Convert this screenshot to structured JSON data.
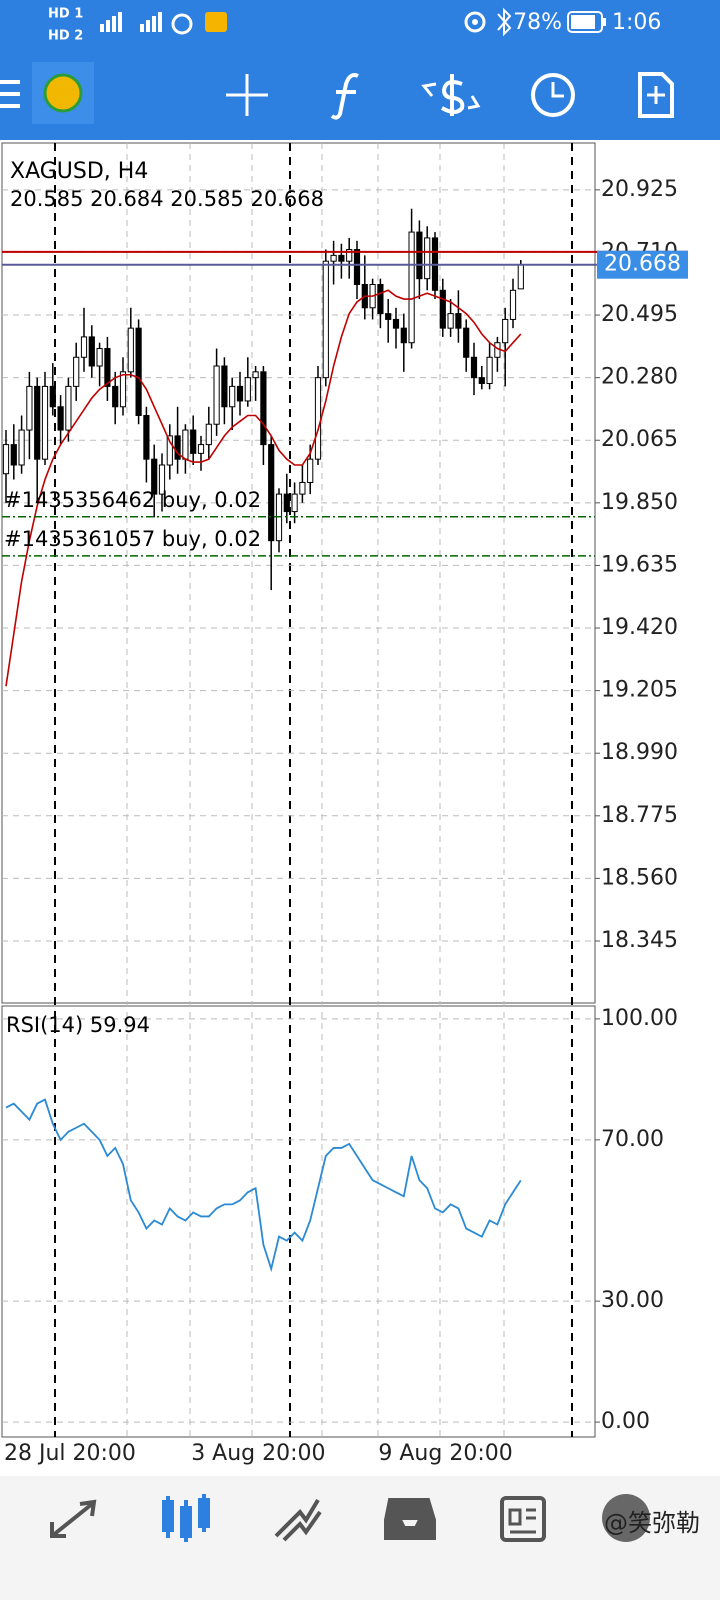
{
  "status_bar": {
    "sim1": "HD 1",
    "sim2": "HD 2",
    "battery": "78%",
    "time": "1:06"
  },
  "watermark": "@笑弥勒",
  "chart_data": [
    {
      "type": "candlestick",
      "title": "XAGUSD, H4",
      "ohlc_label": "20.585 20.684 20.585 20.668",
      "categories": [
        "28 Jul 20:00",
        null,
        null,
        null,
        null,
        null,
        null,
        null,
        null,
        null,
        null,
        null,
        null,
        null,
        null,
        null,
        null,
        null,
        null,
        null,
        null,
        null,
        null,
        null,
        "3 Aug 20:00",
        null,
        null,
        null,
        null,
        null,
        null,
        null,
        null,
        null,
        null,
        null,
        null,
        null,
        null,
        null,
        null,
        null,
        null,
        null,
        null,
        null,
        null,
        null,
        "9 Aug 20:00",
        null,
        null,
        null,
        null,
        null,
        null,
        null,
        null,
        null,
        null,
        null,
        null,
        null,
        null,
        null,
        null,
        null,
        null
      ],
      "open": [
        19.95,
        20.05,
        19.98,
        20.1,
        20.25,
        20.0,
        20.25,
        20.18,
        20.1,
        20.25,
        20.35,
        20.42,
        20.32,
        20.38,
        20.25,
        20.18,
        20.3,
        20.45,
        20.15,
        20.0,
        19.88,
        19.98,
        20.08,
        20.0,
        20.1,
        20.02,
        20.05,
        20.12,
        20.32,
        20.18,
        20.25,
        20.2,
        20.28,
        20.3,
        20.05,
        19.72,
        19.88,
        19.82,
        19.88,
        19.92,
        20.0,
        20.28,
        20.68,
        20.7,
        20.68,
        20.72,
        20.6,
        20.52,
        20.6,
        20.5,
        20.48,
        20.45,
        20.4,
        20.78,
        20.62,
        20.76,
        20.58,
        20.45,
        20.5,
        20.45,
        20.35,
        20.28,
        20.26,
        20.35,
        20.4,
        20.48,
        20.585
      ],
      "high": [
        20.1,
        20.12,
        20.15,
        20.3,
        20.28,
        20.3,
        20.33,
        20.22,
        20.28,
        20.4,
        20.52,
        20.46,
        20.4,
        20.42,
        20.3,
        20.35,
        20.52,
        20.48,
        20.18,
        20.05,
        20.02,
        20.12,
        20.18,
        20.12,
        20.15,
        20.08,
        20.18,
        20.38,
        20.35,
        20.28,
        20.3,
        20.35,
        20.32,
        20.32,
        20.08,
        19.9,
        19.95,
        19.92,
        19.98,
        20.05,
        20.32,
        20.72,
        20.75,
        20.74,
        20.76,
        20.75,
        20.7,
        20.62,
        20.62,
        20.55,
        20.52,
        20.5,
        20.86,
        20.82,
        20.8,
        20.78,
        20.62,
        20.55,
        20.58,
        20.48,
        20.4,
        20.32,
        20.4,
        20.42,
        20.52,
        20.62,
        20.684
      ],
      "low": [
        19.85,
        19.93,
        19.95,
        20.0,
        19.85,
        19.98,
        20.15,
        20.05,
        20.06,
        20.2,
        20.3,
        20.28,
        20.25,
        20.2,
        20.12,
        20.15,
        20.28,
        20.12,
        19.92,
        19.8,
        19.82,
        19.93,
        19.95,
        19.95,
        19.98,
        19.96,
        20.0,
        20.08,
        20.12,
        20.1,
        20.15,
        20.18,
        20.2,
        19.98,
        19.55,
        19.68,
        19.78,
        19.78,
        19.85,
        19.88,
        19.98,
        20.25,
        20.6,
        20.62,
        20.62,
        20.55,
        20.48,
        20.48,
        20.45,
        20.4,
        20.38,
        20.3,
        20.38,
        20.55,
        20.58,
        20.55,
        20.42,
        20.42,
        20.4,
        20.3,
        20.22,
        20.24,
        20.24,
        20.3,
        20.25,
        20.45,
        20.585
      ],
      "close": [
        20.05,
        19.98,
        20.1,
        20.25,
        20.0,
        20.25,
        20.18,
        20.1,
        20.25,
        20.35,
        20.42,
        20.32,
        20.38,
        20.25,
        20.18,
        20.3,
        20.45,
        20.15,
        20.0,
        19.88,
        19.98,
        20.08,
        20.0,
        20.1,
        20.02,
        20.05,
        20.12,
        20.32,
        20.18,
        20.25,
        20.2,
        20.28,
        20.3,
        20.05,
        19.72,
        19.88,
        19.82,
        19.88,
        19.92,
        20.0,
        20.28,
        20.68,
        20.7,
        20.68,
        20.72,
        20.6,
        20.52,
        20.6,
        20.5,
        20.48,
        20.45,
        20.4,
        20.78,
        20.62,
        20.76,
        20.58,
        20.45,
        20.5,
        20.45,
        20.35,
        20.28,
        20.26,
        20.35,
        20.4,
        20.48,
        20.58,
        20.668
      ],
      "ma": {
        "color": "#c00000",
        "values": [
          19.22,
          19.4,
          19.58,
          19.72,
          19.84,
          19.93,
          20.0,
          20.05,
          20.09,
          20.13,
          20.17,
          20.21,
          20.24,
          20.26,
          20.28,
          20.29,
          20.29,
          20.28,
          20.24,
          20.18,
          20.12,
          20.06,
          20.02,
          20.0,
          19.99,
          19.99,
          20.0,
          20.04,
          20.08,
          20.11,
          20.13,
          20.15,
          20.15,
          20.12,
          20.08,
          20.03,
          20.0,
          19.98,
          19.98,
          20.02,
          20.1,
          20.2,
          20.32,
          20.42,
          20.5,
          20.54,
          20.56,
          20.56,
          20.57,
          20.58,
          20.56,
          20.55,
          20.55,
          20.56,
          20.57,
          20.56,
          20.55,
          20.54,
          20.52,
          20.5,
          20.47,
          20.43,
          20.4,
          20.38,
          20.37,
          20.4,
          20.43
        ]
      },
      "bid": 20.668,
      "bid_color": "#5a5a9a",
      "bid_label_color": "#3a8ee6",
      "ask": 20.712,
      "ask_color": "#c00000",
      "orders": [
        {
          "label": "#1435356462 buy, 0.02",
          "price": 19.802
        },
        {
          "label": "#1435361057 buy, 0.02",
          "price": 19.668
        }
      ],
      "order_color": "#006400",
      "ylim": [
        18.132,
        21.086
      ],
      "yticks": [
        20.925,
        {
          "value": 20.71,
          "label": "20.710"
        },
        20.495,
        {
          "value": 20.28,
          "label": "20.280"
        },
        20.065,
        {
          "value": 19.85,
          "label": "19.850"
        },
        19.635,
        {
          "value": 19.42,
          "label": "19.420"
        },
        19.205,
        {
          "value": 18.99,
          "label": "18.990"
        },
        18.775,
        {
          "value": 18.56,
          "label": "18.560"
        },
        18.345
      ],
      "grid": true
    },
    {
      "type": "line",
      "title": "RSI(14) 59.94",
      "series": [
        {
          "color": "#2a8ad4",
          "values": [
            78,
            79,
            77,
            75,
            79,
            80,
            74,
            70,
            72,
            73,
            74,
            72,
            70,
            66,
            68,
            64,
            55,
            52,
            48,
            50,
            49,
            53,
            51,
            50,
            52,
            51,
            51,
            53,
            54,
            54,
            55,
            57,
            58,
            44,
            38,
            46,
            45,
            47,
            45,
            50,
            58,
            66,
            68,
            68,
            69,
            66,
            63,
            60,
            59,
            58,
            57,
            56,
            66,
            60,
            58,
            53,
            52,
            54,
            53,
            48,
            47,
            46,
            50,
            49,
            54,
            57,
            59.94
          ]
        }
      ],
      "ylim": [
        -3.7,
        103.2
      ],
      "yticks": [
        {
          "value": 100,
          "label": "100.00"
        },
        {
          "value": 70,
          "label": "70.00"
        },
        {
          "value": 30,
          "label": "30.00"
        },
        {
          "value": 0,
          "label": "0.00"
        }
      ],
      "grid": true
    }
  ]
}
